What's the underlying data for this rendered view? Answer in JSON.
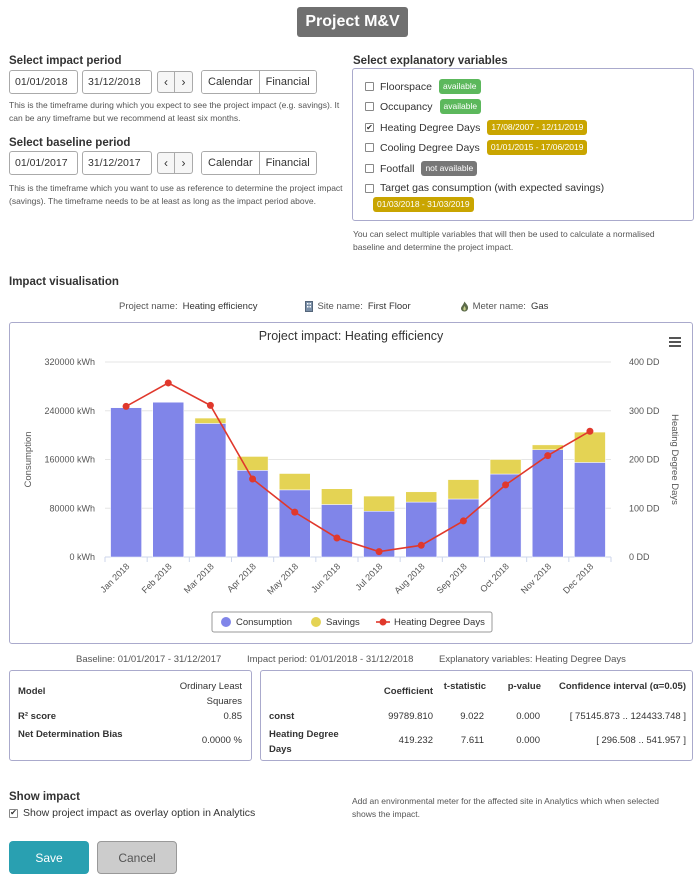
{
  "page": {
    "title": "Project M&V"
  },
  "impact_period": {
    "heading": "Select impact period",
    "start": "01/01/2018",
    "end": "31/12/2018",
    "prev": "‹",
    "next": "›",
    "calendar_label": "Calendar",
    "financial_label": "Financial",
    "help": "This is the timeframe during which you expect to see the project impact (e.g. savings). It can be any timeframe but we recommend at least six months."
  },
  "baseline_period": {
    "heading": "Select baseline period",
    "start": "01/01/2017",
    "end": "31/12/2017",
    "prev": "‹",
    "next": "›",
    "calendar_label": "Calendar",
    "financial_label": "Financial",
    "help": "This is the timeframe which you want to use as reference to determine the project impact (savings). The timeframe needs to be at least as long as the impact period above."
  },
  "explanatory": {
    "heading": "Select explanatory variables",
    "variables": [
      {
        "label": "Floorspace",
        "checked": false,
        "badge": "available",
        "badge_color": "#5cb85c"
      },
      {
        "label": "Occupancy",
        "checked": false,
        "badge": "available",
        "badge_color": "#5cb85c"
      },
      {
        "label": "Heating Degree Days",
        "checked": true,
        "badge": "17/08/2007 - 12/11/2019",
        "badge_color": "#c9a500"
      },
      {
        "label": "Cooling Degree Days",
        "checked": false,
        "badge": "01/01/2015 - 17/06/2019",
        "badge_color": "#c9a500"
      },
      {
        "label": "Footfall",
        "checked": false,
        "badge": "not available",
        "badge_color": "#777777"
      },
      {
        "label": "Target gas consumption (with expected savings)",
        "checked": false,
        "badge": "01/03/2018 - 31/03/2019",
        "badge_color": "#c9a500"
      }
    ],
    "help": "You can select multiple variables that will then be used to calculate a normalised baseline and determine the project impact."
  },
  "visualisation": {
    "heading": "Impact visualisation",
    "project_label": "Project name:",
    "project_value": "Heating efficiency",
    "site_label": "Site name:",
    "site_value": "First Floor",
    "meter_label": "Meter name:",
    "meter_value": "Gas",
    "menu_icon": "hamburger-menu-icon",
    "site_icon": "building-icon",
    "meter_icon": "flame-icon"
  },
  "chart_data": {
    "type": "bar",
    "title": "Project impact: Heating efficiency",
    "categories": [
      "Jan 2018",
      "Feb 2018",
      "Mar 2018",
      "Apr 2018",
      "May 2018",
      "Jun 2018",
      "Jul 2018",
      "Aug 2018",
      "Sep 2018",
      "Oct 2018",
      "Nov 2018",
      "Dec 2018"
    ],
    "series": [
      {
        "name": "Consumption",
        "kind": "bar",
        "axis": "left",
        "color": "#8085e9",
        "values": [
          245000,
          254000,
          219000,
          142000,
          110000,
          86000,
          75000,
          90000,
          95000,
          136000,
          176000,
          155000
        ]
      },
      {
        "name": "Savings",
        "kind": "bar-stacked",
        "axis": "left",
        "color": "#e4d354",
        "values": [
          0,
          0,
          9000,
          23000,
          27000,
          26000,
          25000,
          17000,
          32000,
          24000,
          8000,
          50000
        ]
      },
      {
        "name": "Heating Degree Days",
        "kind": "line",
        "axis": "right",
        "color": "#e0382c",
        "values": [
          309,
          357,
          311,
          160,
          92,
          39,
          11,
          24,
          74,
          148,
          208,
          258
        ]
      }
    ],
    "ylabel": "Consumption",
    "ylabel_right": "Heating Degree Days",
    "ylim": [
      0,
      320000
    ],
    "ylim_right": [
      0,
      400
    ],
    "yticks": [
      "0 kWh",
      "80000 kWh",
      "160000 kWh",
      "240000 kWh",
      "320000 kWh"
    ],
    "yticks_right": [
      "0 DD",
      "100 DD",
      "200 DD",
      "300 DD",
      "400 DD"
    ],
    "grid": true,
    "legend_position": "bottom"
  },
  "summary": {
    "baseline": "Baseline: 01/01/2017 - 31/12/2017",
    "impact": "Impact period: 01/01/2018 - 31/12/2018",
    "variables": "Explanatory variables: Heating Degree Days"
  },
  "model_table": {
    "model_label": "Model",
    "model_value": "Ordinary Least Squares",
    "r2_label": "R² score",
    "r2_value": "0.85",
    "ndb_label": "Net Determination Bias",
    "ndb_value": "0.0000 %"
  },
  "coef_table": {
    "headers": [
      "Coefficient",
      "t-statistic",
      "p-value",
      "Confidence interval (α=0.05)"
    ],
    "rows": [
      {
        "name": "const",
        "coef": "99789.810",
        "t": "9.022",
        "p": "0.000",
        "ci": "[ 75145.873 .. 124433.748 ]"
      },
      {
        "name": "Heating Degree Days",
        "coef": "419.232",
        "t": "7.611",
        "p": "0.000",
        "ci": "[ 296.508 .. 541.957 ]"
      }
    ]
  },
  "show_impact": {
    "heading": "Show impact",
    "checkbox_label": "Show project impact as overlay option in Analytics",
    "checked": true,
    "help": "Add an environmental meter for the affected site in Analytics which when selected shows the impact."
  },
  "actions": {
    "save": "Save",
    "cancel": "Cancel"
  }
}
